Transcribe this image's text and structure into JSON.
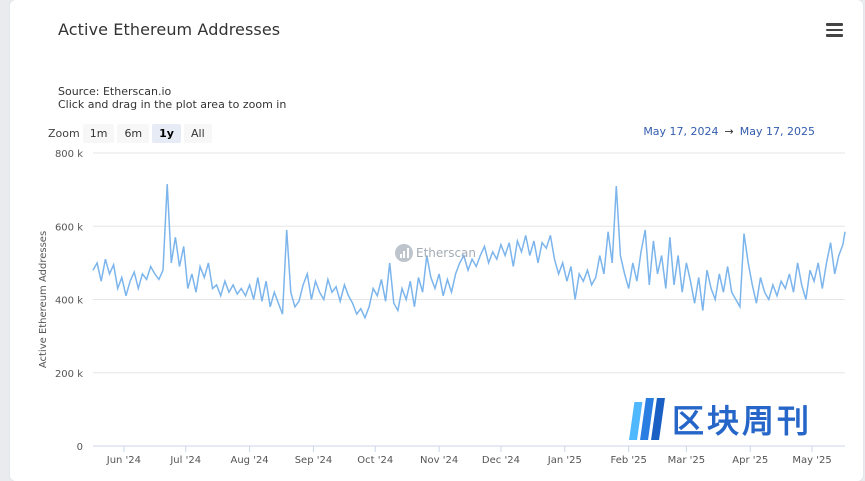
{
  "title": "Active Ethereum Addresses",
  "source_line": "Source: Etherscan.io",
  "hint_line": "Click and drag in the plot area to zoom in",
  "zoom": {
    "label": "Zoom",
    "buttons": [
      "1m",
      "6m",
      "1y",
      "All"
    ],
    "active": "1y"
  },
  "range": {
    "from": "May 17, 2024",
    "sep": "→",
    "to": "May 17, 2025"
  },
  "watermark": "Etherscan",
  "brand_text": "区块周刊",
  "colors": {
    "line": "#7cb5ec",
    "grid": "#e6e6e6",
    "range_text": "#335cad",
    "brand": "#2566c8"
  },
  "chart_data": {
    "type": "line",
    "ylabel": "Active Ethereum Addresses",
    "ylim": [
      0,
      800000
    ],
    "y_ticks": [
      0,
      200000,
      400000,
      600000,
      800000
    ],
    "y_tick_labels": [
      "0",
      "200 k",
      "400 k",
      "600 k",
      "800 k"
    ],
    "x_range": [
      "2024-05-17",
      "2025-05-17"
    ],
    "x_ticks": [
      "2024-06-01",
      "2024-07-01",
      "2024-08-01",
      "2024-09-01",
      "2024-10-01",
      "2024-11-01",
      "2024-12-01",
      "2025-01-01",
      "2025-02-01",
      "2025-03-01",
      "2025-04-01",
      "2025-05-01"
    ],
    "x_tick_labels": [
      "Jun '24",
      "Jul '24",
      "Aug '24",
      "Sep '24",
      "Oct '24",
      "Nov '24",
      "Dec '24",
      "Jan '25",
      "Feb '25",
      "Mar '25",
      "Apr '25",
      "May '25"
    ],
    "series": [
      {
        "points": [
          [
            "2024-05-17",
            480000
          ],
          [
            "2024-05-19",
            500000
          ],
          [
            "2024-05-21",
            450000
          ],
          [
            "2024-05-23",
            510000
          ],
          [
            "2024-05-25",
            470000
          ],
          [
            "2024-05-27",
            495000
          ],
          [
            "2024-05-29",
            430000
          ],
          [
            "2024-05-31",
            460000
          ],
          [
            "2024-06-02",
            410000
          ],
          [
            "2024-06-04",
            450000
          ],
          [
            "2024-06-06",
            475000
          ],
          [
            "2024-06-08",
            430000
          ],
          [
            "2024-06-10",
            470000
          ],
          [
            "2024-06-12",
            455000
          ],
          [
            "2024-06-14",
            490000
          ],
          [
            "2024-06-16",
            470000
          ],
          [
            "2024-06-18",
            455000
          ],
          [
            "2024-06-20",
            480000
          ],
          [
            "2024-06-22",
            715000
          ],
          [
            "2024-06-24",
            500000
          ],
          [
            "2024-06-26",
            570000
          ],
          [
            "2024-06-28",
            490000
          ],
          [
            "2024-06-30",
            545000
          ],
          [
            "2024-07-02",
            430000
          ],
          [
            "2024-07-04",
            470000
          ],
          [
            "2024-07-06",
            420000
          ],
          [
            "2024-07-08",
            490000
          ],
          [
            "2024-07-10",
            460000
          ],
          [
            "2024-07-12",
            500000
          ],
          [
            "2024-07-14",
            430000
          ],
          [
            "2024-07-16",
            440000
          ],
          [
            "2024-07-18",
            410000
          ],
          [
            "2024-07-20",
            450000
          ],
          [
            "2024-07-22",
            420000
          ],
          [
            "2024-07-24",
            440000
          ],
          [
            "2024-07-26",
            415000
          ],
          [
            "2024-07-28",
            430000
          ],
          [
            "2024-07-30",
            410000
          ],
          [
            "2024-08-01",
            440000
          ],
          [
            "2024-08-03",
            400000
          ],
          [
            "2024-08-05",
            460000
          ],
          [
            "2024-08-07",
            395000
          ],
          [
            "2024-08-09",
            450000
          ],
          [
            "2024-08-11",
            380000
          ],
          [
            "2024-08-13",
            420000
          ],
          [
            "2024-08-15",
            390000
          ],
          [
            "2024-08-17",
            360000
          ],
          [
            "2024-08-19",
            590000
          ],
          [
            "2024-08-21",
            420000
          ],
          [
            "2024-08-23",
            380000
          ],
          [
            "2024-08-25",
            395000
          ],
          [
            "2024-08-27",
            440000
          ],
          [
            "2024-08-29",
            470000
          ],
          [
            "2024-08-31",
            400000
          ],
          [
            "2024-09-02",
            450000
          ],
          [
            "2024-09-04",
            420000
          ],
          [
            "2024-09-06",
            400000
          ],
          [
            "2024-09-08",
            455000
          ],
          [
            "2024-09-10",
            420000
          ],
          [
            "2024-09-12",
            435000
          ],
          [
            "2024-09-14",
            395000
          ],
          [
            "2024-09-16",
            440000
          ],
          [
            "2024-09-18",
            410000
          ],
          [
            "2024-09-20",
            390000
          ],
          [
            "2024-09-22",
            360000
          ],
          [
            "2024-09-24",
            375000
          ],
          [
            "2024-09-26",
            350000
          ],
          [
            "2024-09-28",
            380000
          ],
          [
            "2024-09-30",
            430000
          ],
          [
            "2024-10-02",
            410000
          ],
          [
            "2024-10-04",
            455000
          ],
          [
            "2024-10-06",
            395000
          ],
          [
            "2024-10-08",
            500000
          ],
          [
            "2024-10-10",
            390000
          ],
          [
            "2024-10-12",
            370000
          ],
          [
            "2024-10-14",
            430000
          ],
          [
            "2024-10-16",
            400000
          ],
          [
            "2024-10-18",
            450000
          ],
          [
            "2024-10-20",
            380000
          ],
          [
            "2024-10-22",
            460000
          ],
          [
            "2024-10-24",
            420000
          ],
          [
            "2024-10-26",
            520000
          ],
          [
            "2024-10-28",
            460000
          ],
          [
            "2024-10-30",
            430000
          ],
          [
            "2024-11-01",
            470000
          ],
          [
            "2024-11-03",
            410000
          ],
          [
            "2024-11-05",
            455000
          ],
          [
            "2024-11-07",
            420000
          ],
          [
            "2024-11-09",
            470000
          ],
          [
            "2024-11-11",
            500000
          ],
          [
            "2024-11-13",
            520000
          ],
          [
            "2024-11-15",
            480000
          ],
          [
            "2024-11-17",
            510000
          ],
          [
            "2024-11-19",
            490000
          ],
          [
            "2024-11-21",
            520000
          ],
          [
            "2024-11-23",
            545000
          ],
          [
            "2024-11-25",
            500000
          ],
          [
            "2024-11-27",
            530000
          ],
          [
            "2024-11-29",
            510000
          ],
          [
            "2024-12-01",
            550000
          ],
          [
            "2024-12-03",
            520000
          ],
          [
            "2024-12-05",
            555000
          ],
          [
            "2024-12-07",
            490000
          ],
          [
            "2024-12-09",
            560000
          ],
          [
            "2024-12-11",
            530000
          ],
          [
            "2024-12-13",
            575000
          ],
          [
            "2024-12-15",
            520000
          ],
          [
            "2024-12-17",
            560000
          ],
          [
            "2024-12-19",
            500000
          ],
          [
            "2024-12-21",
            555000
          ],
          [
            "2024-12-23",
            540000
          ],
          [
            "2024-12-25",
            575000
          ],
          [
            "2024-12-27",
            510000
          ],
          [
            "2024-12-29",
            470000
          ],
          [
            "2024-12-31",
            500000
          ],
          [
            "2025-01-02",
            450000
          ],
          [
            "2025-01-04",
            490000
          ],
          [
            "2025-01-06",
            400000
          ],
          [
            "2025-01-08",
            470000
          ],
          [
            "2025-01-10",
            450000
          ],
          [
            "2025-01-12",
            480000
          ],
          [
            "2025-01-14",
            440000
          ],
          [
            "2025-01-16",
            460000
          ],
          [
            "2025-01-18",
            520000
          ],
          [
            "2025-01-20",
            470000
          ],
          [
            "2025-01-22",
            585000
          ],
          [
            "2025-01-24",
            500000
          ],
          [
            "2025-01-26",
            710000
          ],
          [
            "2025-01-28",
            520000
          ],
          [
            "2025-01-30",
            470000
          ],
          [
            "2025-02-01",
            430000
          ],
          [
            "2025-02-03",
            500000
          ],
          [
            "2025-02-05",
            450000
          ],
          [
            "2025-02-07",
            530000
          ],
          [
            "2025-02-09",
            590000
          ],
          [
            "2025-02-11",
            440000
          ],
          [
            "2025-02-13",
            560000
          ],
          [
            "2025-02-15",
            470000
          ],
          [
            "2025-02-17",
            520000
          ],
          [
            "2025-02-19",
            430000
          ],
          [
            "2025-02-21",
            570000
          ],
          [
            "2025-02-23",
            440000
          ],
          [
            "2025-02-25",
            520000
          ],
          [
            "2025-02-27",
            420000
          ],
          [
            "2025-03-01",
            500000
          ],
          [
            "2025-03-03",
            450000
          ],
          [
            "2025-03-05",
            390000
          ],
          [
            "2025-03-07",
            460000
          ],
          [
            "2025-03-09",
            370000
          ],
          [
            "2025-03-11",
            480000
          ],
          [
            "2025-03-13",
            430000
          ],
          [
            "2025-03-15",
            400000
          ],
          [
            "2025-03-17",
            470000
          ],
          [
            "2025-03-19",
            420000
          ],
          [
            "2025-03-21",
            490000
          ],
          [
            "2025-03-23",
            420000
          ],
          [
            "2025-03-25",
            400000
          ],
          [
            "2025-03-27",
            380000
          ],
          [
            "2025-03-29",
            580000
          ],
          [
            "2025-03-31",
            500000
          ],
          [
            "2025-04-02",
            440000
          ],
          [
            "2025-04-04",
            390000
          ],
          [
            "2025-04-06",
            460000
          ],
          [
            "2025-04-08",
            420000
          ],
          [
            "2025-04-10",
            400000
          ],
          [
            "2025-04-12",
            440000
          ],
          [
            "2025-04-14",
            410000
          ],
          [
            "2025-04-16",
            450000
          ],
          [
            "2025-04-18",
            430000
          ],
          [
            "2025-04-20",
            470000
          ],
          [
            "2025-04-22",
            420000
          ],
          [
            "2025-04-24",
            500000
          ],
          [
            "2025-04-26",
            440000
          ],
          [
            "2025-04-28",
            400000
          ],
          [
            "2025-04-30",
            480000
          ],
          [
            "2025-05-02",
            450000
          ],
          [
            "2025-05-04",
            500000
          ],
          [
            "2025-05-06",
            430000
          ],
          [
            "2025-05-08",
            500000
          ],
          [
            "2025-05-10",
            555000
          ],
          [
            "2025-05-12",
            470000
          ],
          [
            "2025-05-14",
            520000
          ],
          [
            "2025-05-16",
            550000
          ],
          [
            "2025-05-17",
            585000
          ]
        ]
      }
    ]
  }
}
